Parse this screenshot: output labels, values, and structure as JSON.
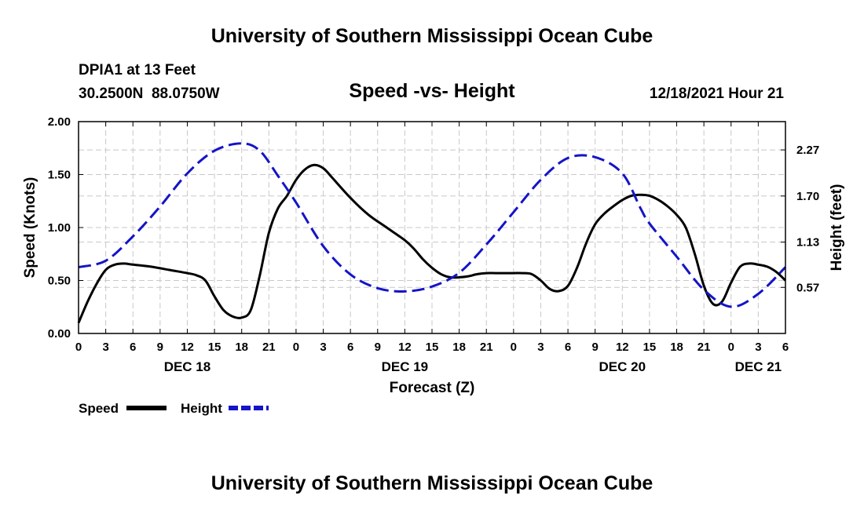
{
  "header": {
    "title": "University of Southern Mississippi Ocean Cube",
    "station": "DPIA1 at 13 Feet",
    "coords": "30.2500N  88.0750W",
    "subtitle": "Speed -vs- Height",
    "timestamp": "12/18/2021 Hour 21"
  },
  "footer": {
    "title": "University of Southern Mississippi Ocean Cube"
  },
  "colors": {
    "speed": "#000000",
    "height": "#1414c8",
    "grid": "#c8c8c8"
  },
  "chart_data": {
    "type": "line",
    "xlabel": "Forecast (Z)",
    "ylabel": "Speed (Knots)",
    "y2label": "Height (feet)",
    "xlim": [
      0,
      78
    ],
    "ylim": [
      0,
      2.0
    ],
    "y2lim": [
      0,
      2.62
    ],
    "x_ticks": [
      0,
      3,
      6,
      9,
      12,
      15,
      18,
      21,
      24,
      27,
      30,
      33,
      36,
      39,
      42,
      45,
      48,
      51,
      54,
      57,
      60,
      63,
      66,
      69,
      72,
      75,
      78
    ],
    "x_tick_labels": [
      "0",
      "3",
      "6",
      "9",
      "12",
      "15",
      "18",
      "21",
      "0",
      "3",
      "6",
      "9",
      "12",
      "15",
      "18",
      "21",
      "0",
      "3",
      "6",
      "9",
      "12",
      "15",
      "18",
      "21",
      "0",
      "3",
      "6"
    ],
    "day_labels": [
      {
        "x": 12,
        "label": "DEC 18"
      },
      {
        "x": 36,
        "label": "DEC 19"
      },
      {
        "x": 60,
        "label": "DEC 20"
      },
      {
        "x": 75,
        "label": "DEC 21"
      }
    ],
    "y_ticks": [
      0,
      0.5,
      1.0,
      1.5,
      2.0
    ],
    "y_tick_labels": [
      "0.00",
      "0.50",
      "1.00",
      "1.50",
      "2.00"
    ],
    "y2_ticks": [
      0.57,
      1.13,
      1.7,
      2.27
    ],
    "y2_tick_labels": [
      "0.57",
      "1.13",
      "1.70",
      "2.27"
    ],
    "legend": [
      {
        "name": "Speed",
        "style": "solid"
      },
      {
        "name": "Height",
        "style": "dashed"
      }
    ],
    "series": [
      {
        "name": "Speed",
        "axis": "left",
        "style": "solid",
        "x": [
          0,
          1,
          2,
          3,
          4,
          5,
          6,
          8,
          10,
          12,
          13,
          14,
          15,
          16,
          17,
          18,
          19,
          20,
          21,
          22,
          23,
          24,
          25,
          26,
          27,
          28,
          30,
          32,
          34,
          36,
          37,
          38,
          39,
          40,
          41,
          42,
          43,
          44,
          45,
          46,
          47,
          48,
          49,
          50,
          51,
          52,
          53,
          54,
          55,
          56,
          57,
          58,
          59,
          60,
          61,
          62,
          63,
          64,
          65,
          66,
          67,
          68,
          69,
          70,
          71,
          72,
          73,
          74,
          75,
          76,
          77,
          78
        ],
        "values": [
          0.1,
          0.3,
          0.47,
          0.6,
          0.65,
          0.66,
          0.65,
          0.63,
          0.6,
          0.57,
          0.55,
          0.5,
          0.35,
          0.22,
          0.16,
          0.15,
          0.22,
          0.55,
          0.95,
          1.18,
          1.3,
          1.45,
          1.55,
          1.59,
          1.56,
          1.47,
          1.28,
          1.12,
          1.0,
          0.88,
          0.8,
          0.7,
          0.62,
          0.56,
          0.53,
          0.53,
          0.54,
          0.56,
          0.57,
          0.57,
          0.57,
          0.57,
          0.57,
          0.56,
          0.5,
          0.42,
          0.4,
          0.45,
          0.62,
          0.85,
          1.03,
          1.13,
          1.2,
          1.26,
          1.3,
          1.31,
          1.3,
          1.26,
          1.2,
          1.12,
          1.0,
          0.75,
          0.45,
          0.28,
          0.3,
          0.48,
          0.63,
          0.66,
          0.65,
          0.63,
          0.58,
          0.5
        ]
      },
      {
        "name": "Height",
        "axis": "right",
        "style": "dashed",
        "x": [
          0,
          3,
          6,
          9,
          12,
          15,
          18,
          20,
          22,
          24,
          27,
          30,
          33,
          36,
          39,
          42,
          45,
          48,
          51,
          54,
          57,
          60,
          62,
          63,
          66,
          69,
          72,
          75,
          78
        ],
        "values": [
          0.82,
          0.9,
          1.2,
          1.57,
          1.98,
          2.26,
          2.35,
          2.26,
          1.95,
          1.62,
          1.08,
          0.73,
          0.56,
          0.52,
          0.58,
          0.75,
          1.1,
          1.5,
          1.9,
          2.17,
          2.18,
          1.98,
          1.55,
          1.36,
          0.95,
          0.54,
          0.33,
          0.49,
          0.82
        ]
      }
    ]
  }
}
